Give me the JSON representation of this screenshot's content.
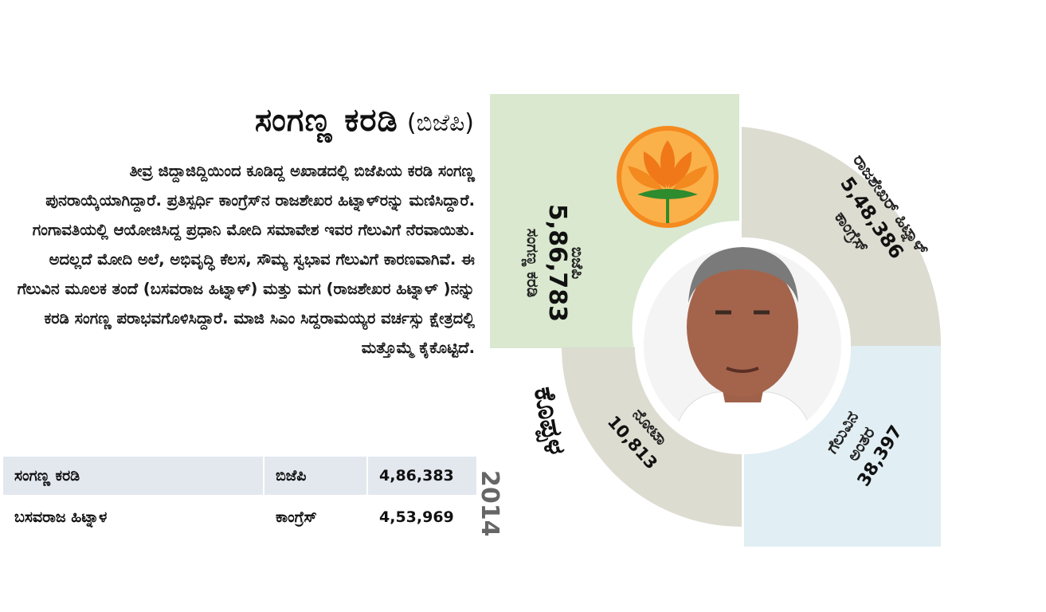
{
  "title": {
    "name": "ಸಂಗಣ್ಣ ಕರಡಿ",
    "party": "(ಬಿಜೆಪಿ)"
  },
  "body_text": "ತೀವ್ರ ಜಿದ್ದಾಜಿದ್ದಿಯಿಂದ ಕೂಡಿದ್ದ ಅಖಾಡದಲ್ಲಿ ಬಿಜೆಪಿಯ ಕರಡಿ ಸಂಗಣ್ಣ ಪುನರಾಯ್ಕೆಯಾಗಿದ್ದಾರೆ. ಪ್ರತಿಸ್ಪರ್ಧಿ ಕಾಂಗ್ರೆಸ್‌ನ ರಾಜಶೇಖರ ಹಿಟ್ನಾಳ್‌ರನ್ನು ಮಣಿಸಿದ್ದಾರೆ. ಗಂಗಾವತಿಯಲ್ಲಿ ಆಯೋಜಿಸಿದ್ದ ಪ್ರಧಾನಿ ಮೋದಿ ಸಮಾವೇಶ ಇವರ ಗೆಲುವಿಗೆ ನೆರವಾಯಿತು. ಅದಲ್ಲದೆ ಮೋದಿ ಅಲೆ, ಅಭಿವೃದ್ಧಿ ಕೆಲಸ, ಸೌಮ್ಯ ಸ್ವಭಾವ ಗೆಲುವಿಗೆ ಕಾರಣವಾಗಿವೆ. ಈ ಗೆಲುವಿನ ಮೂಲಕ ತಂದೆ (ಬಸವರಾಜ ಹಿಟ್ನಾಳ್) ಮತ್ತು ಮಗ (ರಾಜಶೇಖರ ಹಿಟ್ನಾಳ್ )ನನ್ನು ಕರಡಿ ಸಂಗಣ್ಣ ಪರಾಭವಗೊಳಿಸಿದ್ದಾರೆ. ಮಾಜಿ ಸಿಎಂ ಸಿದ್ದರಾಮಯ್ಯರ ವರ್ಚಸ್ಸು ಕ್ಷೇತ್ರದಲ್ಲಿ ಮತ್ತೊಮ್ಮೆ ಕೈಕೊಟ್ಟಿದೆ.",
  "table": {
    "year": "2014",
    "rows": [
      {
        "name": "ಸಂಗಣ್ಣ ಕರಡಿ",
        "party": "ಬಿಜೆಪಿ",
        "votes": "4,86,383"
      },
      {
        "name": "ಬಸವರಾಜ ಹಿಟ್ನಾಳ",
        "party": "ಕಾಂಗ್ರೆಸ್",
        "votes": "4,53,969"
      }
    ]
  },
  "graphic": {
    "constituency": "ಕೊಪ್ಪಳ",
    "winner": {
      "name": "ಸಂಗಣ್ಣ ಕರಡಿ",
      "votes": "5,86,783",
      "party": "ಬಿಜೆಪಿ"
    },
    "runner_up": {
      "name": "ರಾಜಶೇಖರ್ ಹಿಟ್ನಾಳ್",
      "votes": "5,48,386",
      "party": "ಕಾಂಗ್ರೆಸ್"
    },
    "nota": {
      "label": "ನೋಟಾ",
      "votes": "10,813"
    },
    "margin": {
      "label1": "ಗೆಲುವಿನ",
      "label2": "ಅಂತರ",
      "votes": "38,397"
    },
    "colors": {
      "winner_segment": "#d9e8cf",
      "runner_segment": "#dcdcd1",
      "nota_segment": "#dcdcd1",
      "margin_segment": "#e1eef3",
      "bjp_orange": "#f58a1f",
      "bjp_green": "#2e8b2e"
    },
    "icons": [
      "bjp-lotus-logo",
      "candidate-photo"
    ]
  }
}
